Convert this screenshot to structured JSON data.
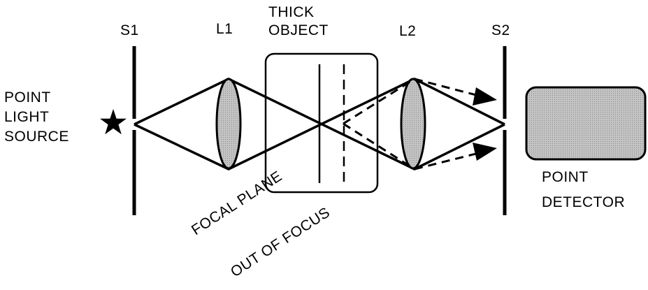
{
  "labels": {
    "s1": "S1",
    "l1": "L1",
    "thick_object_line1": "THICK",
    "thick_object_line2": "OBJECT",
    "l2": "L2",
    "s2": "S2",
    "source_line1": "POINT",
    "source_line2": "LIGHT",
    "source_line3": "SOURCE",
    "detector_line1": "POINT",
    "detector_line2": "DETECTOR",
    "focal_plane": "FOCAL PLANE",
    "out_of_focus": "OUT OF FOCUS"
  },
  "colors": {
    "ink": "#000000",
    "lens_fill": "#b8b8b8",
    "detector_fill": "#bdbdbd"
  }
}
